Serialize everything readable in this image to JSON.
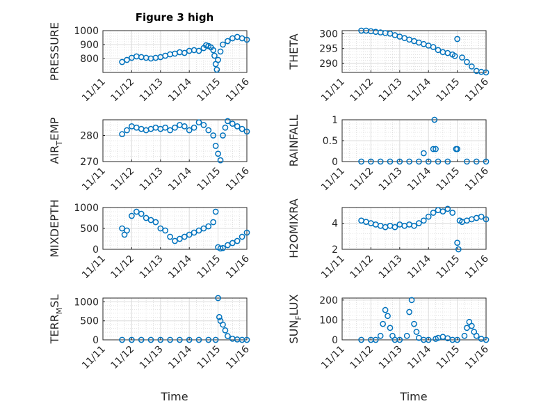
{
  "figure": {
    "title": "Figure 3 high"
  },
  "colors": {
    "marker": "#0072bd",
    "axis": "#262626",
    "grid": "#dcdcdc"
  },
  "x_axis": {
    "type": "date",
    "range": [
      "11/11",
      "11/16"
    ],
    "ticks": [
      "11/11",
      "11/12",
      "11/13",
      "11/14",
      "11/15",
      "11/16"
    ],
    "label": "Time"
  },
  "chart_data": [
    {
      "type": "scatter",
      "ylabel": "PRESSURE",
      "ylim": [
        700,
        1000
      ],
      "yticks": [
        800,
        900,
        1000
      ],
      "grid": true,
      "x": [
        "11/11 16:00",
        "11/11 20:00",
        "11/12 00:00",
        "11/12 04:00",
        "11/12 08:00",
        "11/12 12:00",
        "11/12 16:00",
        "11/12 20:00",
        "11/13 00:00",
        "11/13 04:00",
        "11/13 08:00",
        "11/13 12:00",
        "11/13 16:00",
        "11/13 20:00",
        "11/14 00:00",
        "11/14 04:00",
        "11/14 08:00",
        "11/14 12:00",
        "11/14 14:00",
        "11/14 16:00",
        "11/14 18:00",
        "11/14 20:00",
        "11/14 21:00",
        "11/14 22:00",
        "11/14 23:00",
        "11/15 00:00",
        "11/15 02:00",
        "11/15 04:00",
        "11/15 08:00",
        "11/15 12:00",
        "11/15 16:00",
        "11/15 20:00",
        "11/16 00:00"
      ],
      "y": [
        775,
        790,
        805,
        815,
        810,
        805,
        800,
        805,
        810,
        820,
        830,
        835,
        845,
        840,
        855,
        860,
        855,
        875,
        895,
        890,
        880,
        860,
        820,
        760,
        720,
        790,
        850,
        900,
        925,
        945,
        955,
        945,
        935
      ]
    },
    {
      "type": "scatter",
      "ylabel": "THETA",
      "ylim": [
        287,
        301
      ],
      "yticks": [
        290,
        295,
        300
      ],
      "grid": true,
      "x": [
        "11/11 16:00",
        "11/11 20:00",
        "11/12 00:00",
        "11/12 04:00",
        "11/12 08:00",
        "11/12 12:00",
        "11/12 16:00",
        "11/12 20:00",
        "11/13 00:00",
        "11/13 04:00",
        "11/13 08:00",
        "11/13 12:00",
        "11/13 16:00",
        "11/13 20:00",
        "11/14 00:00",
        "11/14 04:00",
        "11/14 08:00",
        "11/14 12:00",
        "11/14 16:00",
        "11/14 20:00",
        "11/14 22:00",
        "11/15 00:00",
        "11/15 04:00",
        "11/15 08:00",
        "11/15 12:00",
        "11/15 16:00",
        "11/15 20:00",
        "11/16 00:00"
      ],
      "y": [
        301,
        301,
        300.8,
        300.6,
        300.4,
        300.2,
        300,
        299.5,
        299,
        298.5,
        298,
        297.5,
        297,
        296.5,
        296,
        295.5,
        294.5,
        293.8,
        293.5,
        293,
        292.5,
        298.2,
        292,
        290.5,
        289,
        287.5,
        287.2,
        287
      ]
    },
    {
      "type": "scatter",
      "ylabel": "AIR_TEMP",
      "ylim": [
        270,
        286
      ],
      "yticks": [
        270,
        280
      ],
      "grid": true,
      "x": [
        "11/11 16:00",
        "11/11 20:00",
        "11/12 00:00",
        "11/12 04:00",
        "11/12 08:00",
        "11/12 12:00",
        "11/12 16:00",
        "11/12 20:00",
        "11/13 00:00",
        "11/13 04:00",
        "11/13 08:00",
        "11/13 12:00",
        "11/13 16:00",
        "11/13 20:00",
        "11/14 00:00",
        "11/14 04:00",
        "11/14 08:00",
        "11/14 12:00",
        "11/14 16:00",
        "11/14 20:00",
        "11/14 22:00",
        "11/15 00:00",
        "11/15 02:00",
        "11/15 04:00",
        "11/15 06:00",
        "11/15 08:00",
        "11/15 12:00",
        "11/15 16:00",
        "11/15 20:00",
        "11/16 00:00"
      ],
      "y": [
        280.5,
        282,
        283.5,
        283,
        282.5,
        282,
        282.5,
        283,
        282.5,
        283,
        282,
        283,
        284,
        283.5,
        282,
        283,
        285,
        284,
        282,
        280,
        276,
        273,
        270.5,
        280,
        283,
        285.5,
        284.5,
        283.5,
        282.5,
        281.5
      ]
    },
    {
      "type": "scatter",
      "ylabel": "RAINFALL",
      "ylim": [
        0,
        1
      ],
      "yticks": [
        0,
        0.5,
        1
      ],
      "grid": true,
      "x": [
        "11/11 16:00",
        "11/12 00:00",
        "11/12 08:00",
        "11/12 16:00",
        "11/13 00:00",
        "11/13 08:00",
        "11/13 16:00",
        "11/14 00:00",
        "11/13 20:00",
        "11/14 04:00",
        "11/14 05:00",
        "11/14 06:00",
        "11/14 08:00",
        "11/14 16:00",
        "11/14 23:00",
        "11/15 00:00",
        "11/15 08:00",
        "11/15 16:00",
        "11/16 00:00"
      ],
      "y": [
        0,
        0,
        0,
        0,
        0,
        0,
        0,
        0,
        0.2,
        0.3,
        1,
        0.3,
        0,
        0,
        0.3,
        0.3,
        0,
        0,
        0
      ]
    },
    {
      "type": "scatter",
      "ylabel": "MIXDEPTH",
      "ylim": [
        0,
        1000
      ],
      "yticks": [
        0,
        500,
        1000
      ],
      "grid": true,
      "x": [
        "11/11 16:00",
        "11/11 18:00",
        "11/11 20:00",
        "11/12 00:00",
        "11/12 04:00",
        "11/12 08:00",
        "11/12 12:00",
        "11/12 16:00",
        "11/12 20:00",
        "11/13 00:00",
        "11/13 04:00",
        "11/13 08:00",
        "11/13 12:00",
        "11/13 16:00",
        "11/13 20:00",
        "11/14 00:00",
        "11/14 04:00",
        "11/14 08:00",
        "11/14 12:00",
        "11/14 16:00",
        "11/14 20:00",
        "11/14 22:00",
        "11/15 00:00",
        "11/15 02:00",
        "11/15 04:00",
        "11/15 08:00",
        "11/15 12:00",
        "11/15 16:00",
        "11/15 20:00",
        "11/16 00:00"
      ],
      "y": [
        500,
        350,
        450,
        800,
        900,
        850,
        750,
        700,
        650,
        500,
        450,
        300,
        200,
        250,
        300,
        350,
        400,
        450,
        500,
        550,
        650,
        900,
        50,
        20,
        30,
        100,
        150,
        200,
        300,
        400
      ]
    },
    {
      "type": "scatter",
      "ylabel": "H2OMIXRA",
      "ylim": [
        2,
        5.2
      ],
      "yticks": [
        2,
        4
      ],
      "grid": true,
      "x": [
        "11/11 16:00",
        "11/11 20:00",
        "11/12 00:00",
        "11/12 04:00",
        "11/12 08:00",
        "11/12 12:00",
        "11/12 16:00",
        "11/12 20:00",
        "11/13 00:00",
        "11/13 04:00",
        "11/13 08:00",
        "11/13 12:00",
        "11/13 16:00",
        "11/13 20:00",
        "11/14 00:00",
        "11/14 04:00",
        "11/14 08:00",
        "11/14 12:00",
        "11/14 16:00",
        "11/14 20:00",
        "11/15 00:00",
        "11/15 01:00",
        "11/15 02:00",
        "11/15 04:00",
        "11/15 08:00",
        "11/15 12:00",
        "11/15 16:00",
        "11/15 20:00",
        "11/16 00:00"
      ],
      "y": [
        4.2,
        4.1,
        4.0,
        3.9,
        3.8,
        3.7,
        3.8,
        3.7,
        3.9,
        3.8,
        3.9,
        3.8,
        4.0,
        4.2,
        4.5,
        4.8,
        5.0,
        4.9,
        5.1,
        4.8,
        2.5,
        2.0,
        4.2,
        4.1,
        4.2,
        4.3,
        4.4,
        4.5,
        4.3
      ]
    },
    {
      "type": "scatter",
      "ylabel": "TERR_MSL",
      "ylim": [
        0,
        1100
      ],
      "yticks": [
        0,
        500,
        1000
      ],
      "grid": true,
      "x": [
        "11/11 16:00",
        "11/12 00:00",
        "11/12 08:00",
        "11/12 16:00",
        "11/13 00:00",
        "11/13 08:00",
        "11/13 16:00",
        "11/14 00:00",
        "11/14 08:00",
        "11/14 16:00",
        "11/14 22:00",
        "11/15 00:00",
        "11/15 01:00",
        "11/15 02:00",
        "11/15 04:00",
        "11/15 06:00",
        "11/15 08:00",
        "11/15 12:00",
        "11/15 16:00",
        "11/15 20:00",
        "11/16 00:00"
      ],
      "y": [
        0,
        0,
        0,
        0,
        0,
        0,
        0,
        0,
        0,
        0,
        0,
        1100,
        600,
        500,
        400,
        250,
        100,
        30,
        10,
        0,
        0
      ]
    },
    {
      "type": "scatter",
      "ylabel": "SUN_FLUX",
      "ylim": [
        0,
        210
      ],
      "yticks": [
        0,
        100,
        200
      ],
      "grid": true,
      "x": [
        "11/11 16:00",
        "11/12 00:00",
        "11/12 04:00",
        "11/12 08:00",
        "11/12 10:00",
        "11/12 12:00",
        "11/12 14:00",
        "11/12 16:00",
        "11/12 18:00",
        "11/12 20:00",
        "11/13 00:00",
        "11/13 06:00",
        "11/13 08:00",
        "11/13 10:00",
        "11/13 12:00",
        "11/13 14:00",
        "11/13 16:00",
        "11/13 20:00",
        "11/14 00:00",
        "11/14 06:00",
        "11/14 08:00",
        "11/14 12:00",
        "11/14 16:00",
        "11/14 20:00",
        "11/15 00:00",
        "11/15 06:00",
        "11/15 08:00",
        "11/15 10:00",
        "11/15 12:00",
        "11/15 14:00",
        "11/15 16:00",
        "11/15 20:00",
        "11/16 00:00"
      ],
      "y": [
        0,
        0,
        0,
        20,
        80,
        150,
        120,
        60,
        20,
        0,
        0,
        20,
        140,
        200,
        80,
        40,
        10,
        0,
        0,
        5,
        10,
        15,
        8,
        0,
        0,
        20,
        60,
        90,
        70,
        40,
        20,
        5,
        0
      ]
    }
  ]
}
